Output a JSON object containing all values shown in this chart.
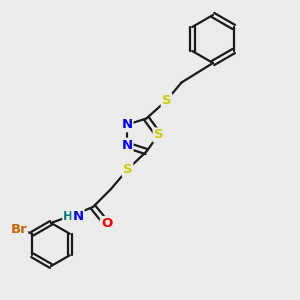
{
  "bg_color": "#ebebeb",
  "bond_color": "#1a1a1a",
  "N_color": "#0000ff",
  "S_color": "#cccc00",
  "O_color": "#ff0000",
  "Br_color": "#cc6600",
  "H_color": "#008080",
  "line_width": 1.6,
  "font_size": 9.5,
  "figsize": [
    3.0,
    3.0
  ],
  "dpi": 100,
  "xlim": [
    0,
    10
  ],
  "ylim": [
    0,
    10
  ]
}
